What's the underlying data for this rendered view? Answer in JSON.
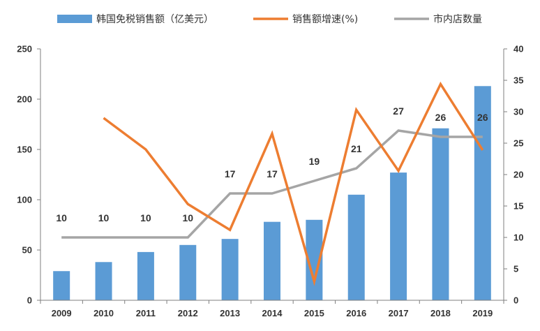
{
  "chart_data": {
    "type": "bar",
    "categories": [
      "2009",
      "2010",
      "2011",
      "2012",
      "2013",
      "2014",
      "2015",
      "2016",
      "2017",
      "2018",
      "2019"
    ],
    "series": [
      {
        "name": "韩国免税销售额（亿美元）",
        "type": "bar",
        "axis": "left",
        "color": "#5b9bd5",
        "values": [
          29,
          38,
          48,
          55,
          61,
          78,
          80,
          105,
          127,
          171,
          213
        ]
      },
      {
        "name": "销售额增速(%)",
        "type": "line",
        "axis": "right",
        "color": "#ed7d31",
        "values": [
          null,
          29,
          24,
          15.3,
          11.2,
          26.5,
          3,
          30.3,
          20.6,
          34.4,
          23.9
        ]
      },
      {
        "name": "市内店数量",
        "type": "line",
        "axis": "right",
        "color": "#a5a5a5",
        "values": [
          10,
          10,
          10,
          10,
          17,
          17,
          19,
          21,
          27,
          26,
          26
        ],
        "data_labels": [
          "10",
          "10",
          "10",
          "10",
          "17",
          "17",
          "19",
          "21",
          "27",
          "26",
          "26"
        ]
      }
    ],
    "y_left": {
      "ylim": [
        0,
        250
      ],
      "ticks": [
        "0",
        "50",
        "100",
        "150",
        "200",
        "250"
      ]
    },
    "y_right": {
      "ylim": [
        0,
        40
      ],
      "ticks": [
        "0",
        "5",
        "10",
        "15",
        "20",
        "25",
        "30",
        "35",
        "40"
      ]
    },
    "legend_position": "top",
    "grid": false
  }
}
